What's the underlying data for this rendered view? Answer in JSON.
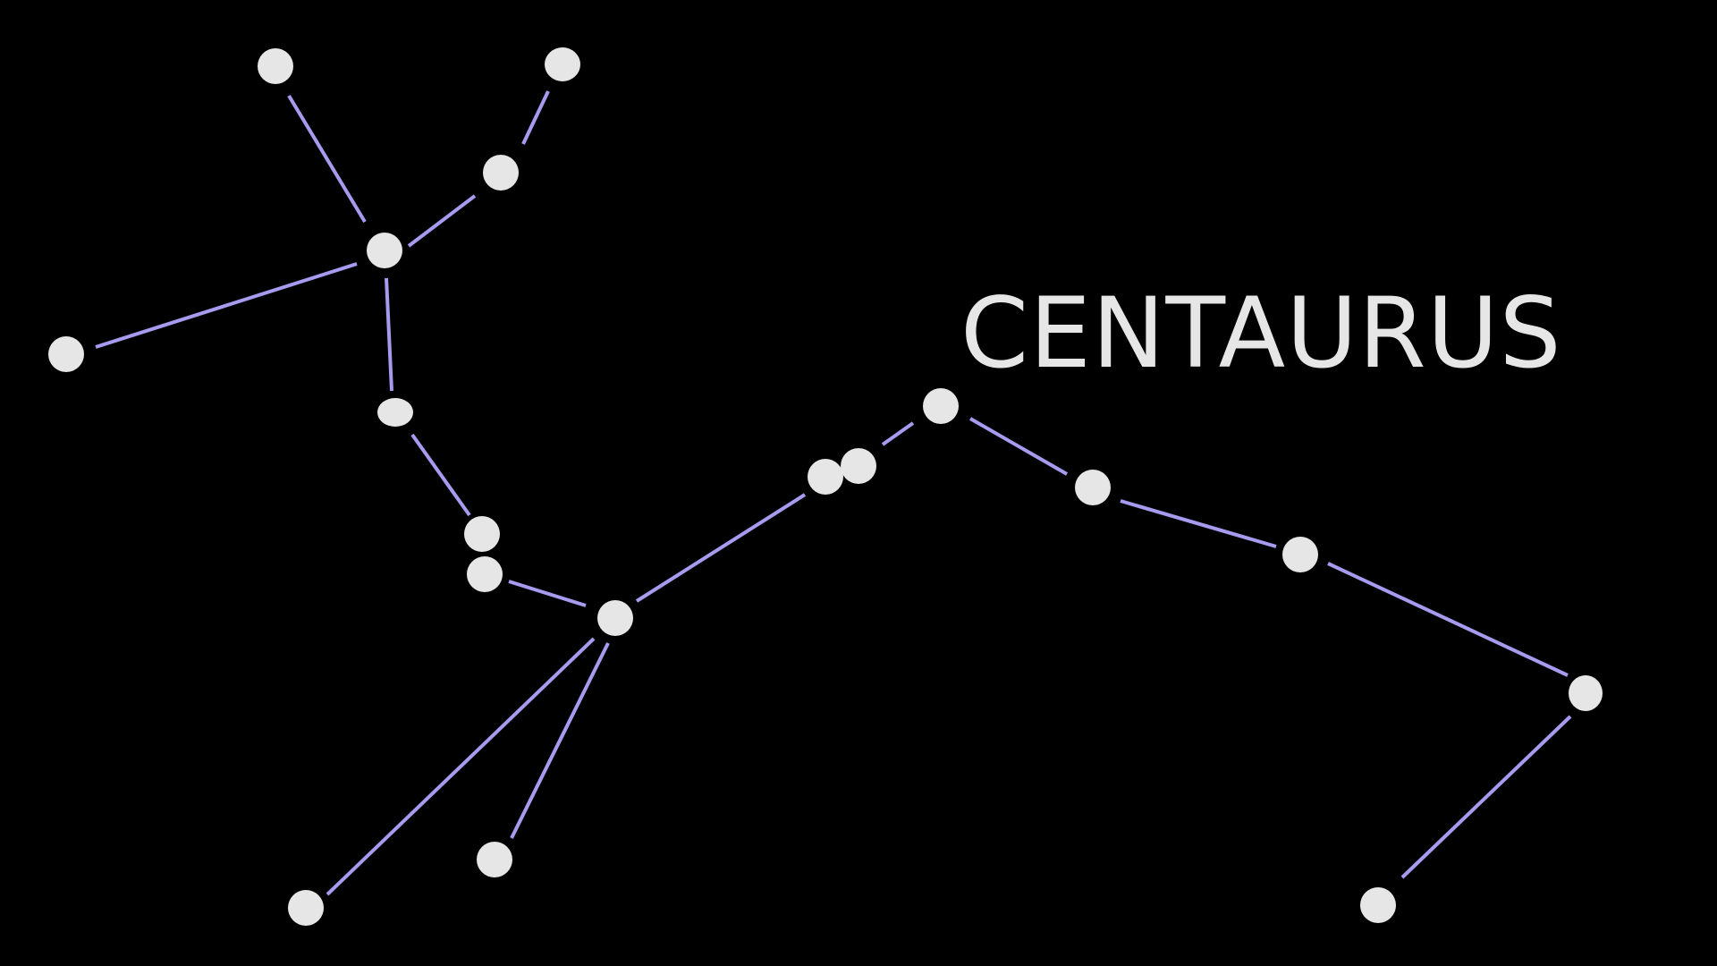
{
  "title": "CENTAURUS",
  "colors": {
    "background": "#000000",
    "star": "#e6e6e6",
    "line": "#a79bf0",
    "title": "#e6e6e6"
  }
}
